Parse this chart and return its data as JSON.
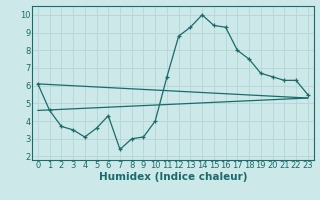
{
  "xlabel": "Humidex (Indice chaleur)",
  "ylabel": "",
  "background_color": "#cce8e8",
  "grid_color": "#b8d8d8",
  "line_color": "#1a6b6b",
  "xlim": [
    -0.5,
    23.5
  ],
  "ylim": [
    1.8,
    10.5
  ],
  "xticks": [
    0,
    1,
    2,
    3,
    4,
    5,
    6,
    7,
    8,
    9,
    10,
    11,
    12,
    13,
    14,
    15,
    16,
    17,
    18,
    19,
    20,
    21,
    22,
    23
  ],
  "yticks": [
    2,
    3,
    4,
    5,
    6,
    7,
    8,
    9,
    10
  ],
  "curve1_x": [
    0,
    1,
    2,
    3,
    4,
    5,
    6,
    7,
    8,
    9,
    10,
    11,
    12,
    13,
    14,
    15,
    16,
    17,
    18,
    19,
    20,
    21,
    22,
    23
  ],
  "curve1_y": [
    6.1,
    4.6,
    3.7,
    3.5,
    3.1,
    3.6,
    4.3,
    2.4,
    3.0,
    3.1,
    4.0,
    6.5,
    8.8,
    9.3,
    10.0,
    9.4,
    9.3,
    8.0,
    7.5,
    6.7,
    6.5,
    6.3,
    6.3,
    5.5
  ],
  "line1_x": [
    0,
    23
  ],
  "line1_y": [
    6.1,
    5.3
  ],
  "line2_x": [
    0,
    23
  ],
  "line2_y": [
    4.6,
    5.3
  ],
  "tick_fontsize": 6,
  "label_fontsize": 7.5
}
